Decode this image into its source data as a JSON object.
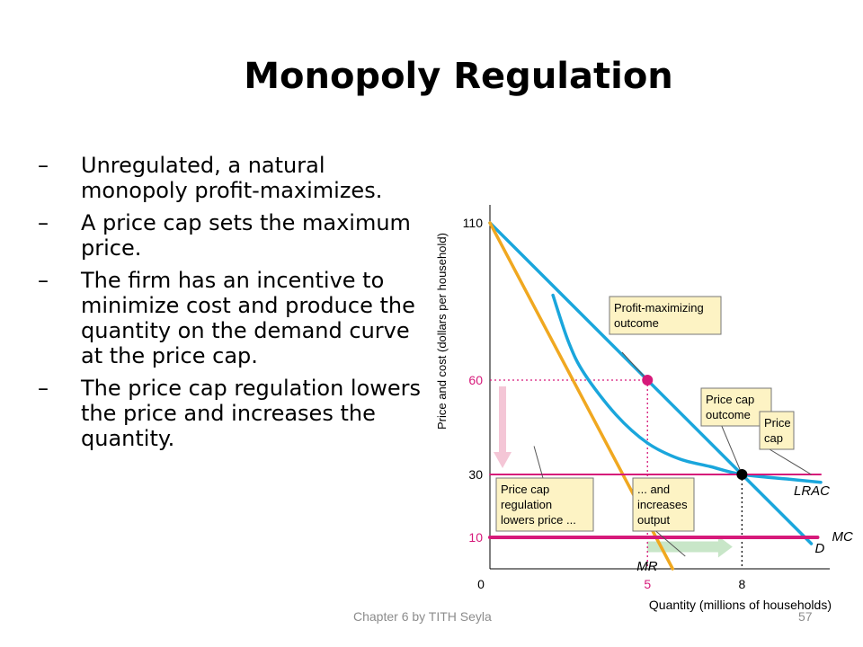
{
  "slide": {
    "title": "Monopoly Regulation",
    "bullets": [
      {
        "dash": "–",
        "text": "Unregulated, a natural monopoly profit-maximizes."
      },
      {
        "dash": "–",
        "text": "A price cap sets the maximum price."
      },
      {
        "dash": "–",
        "text": "The firm has an incentive to minimize cost and produce  the quantity on the demand curve at the price cap."
      },
      {
        "dash": "–",
        "text": "The price cap regulation lowers the price and increases the quantity."
      }
    ],
    "footer": {
      "text": "Chapter 6 by TITH Seyla",
      "page": "57"
    }
  },
  "chart_data": {
    "type": "line",
    "xlabel": "Quantity (millions of households)",
    "ylabel": "Price and cost (dollars per household)",
    "xlim": [
      0,
      10.5
    ],
    "ylim": [
      0,
      110
    ],
    "xticks": [
      "0",
      "5",
      "8"
    ],
    "yticks": [
      "10",
      "30",
      "60",
      "110"
    ],
    "series": [
      {
        "name": "D",
        "color": "#1aa6dc",
        "points": [
          [
            0,
            110
          ],
          [
            8,
            30
          ],
          [
            10.2,
            8
          ]
        ]
      },
      {
        "name": "MR",
        "color": "#f0a820",
        "points": [
          [
            0,
            110
          ],
          [
            5.8,
            0
          ]
        ]
      },
      {
        "name": "MC",
        "color": "#d6197a",
        "points": [
          [
            0,
            10
          ],
          [
            10.4,
            10
          ]
        ]
      },
      {
        "name": "LRAC",
        "color": "#1aa6dc",
        "points": [
          [
            2,
            87
          ],
          [
            2.5,
            72
          ],
          [
            3,
            62
          ],
          [
            4,
            49
          ],
          [
            5,
            40
          ],
          [
            6,
            35
          ],
          [
            7,
            32.5
          ],
          [
            8,
            30
          ],
          [
            9.5,
            28.5
          ],
          [
            10.5,
            27.5
          ]
        ]
      },
      {
        "name": "Price cap",
        "color": "#d6197a",
        "points": [
          [
            0,
            30
          ],
          [
            10.5,
            30
          ]
        ]
      }
    ],
    "points": [
      {
        "x": 5,
        "y": 60,
        "color": "#d6197a"
      },
      {
        "x": 8,
        "y": 30,
        "color": "#000000"
      }
    ],
    "guides": [
      {
        "from": [
          0,
          60
        ],
        "to": [
          5,
          60
        ],
        "color": "#d6197a"
      },
      {
        "from": [
          5,
          60
        ],
        "to": [
          5,
          0
        ],
        "color": "#d6197a"
      },
      {
        "from": [
          8,
          30
        ],
        "to": [
          8,
          0
        ],
        "color": "#000000"
      }
    ],
    "arrows": [
      {
        "from": [
          0.4,
          58
        ],
        "to": [
          0.4,
          32
        ],
        "color": "#f4c6d6"
      },
      {
        "from": [
          5,
          7
        ],
        "to": [
          7.7,
          7
        ],
        "color": "#c8e6c8"
      }
    ],
    "annotations": [
      {
        "lines": [
          "Profit-maximizing",
          "outcome"
        ],
        "target": [
          5,
          60
        ]
      },
      {
        "lines": [
          "Price cap",
          "outcome"
        ],
        "target": [
          8,
          30
        ]
      },
      {
        "lines": [
          "Price",
          "cap"
        ],
        "target": [
          10.2,
          30
        ]
      },
      {
        "lines": [
          "Price cap",
          "regulation",
          "lowers price ..."
        ],
        "target": [
          1.4,
          39
        ]
      },
      {
        "lines": [
          "... and",
          "increases",
          "output"
        ],
        "target": [
          6.2,
          4
        ]
      }
    ]
  }
}
